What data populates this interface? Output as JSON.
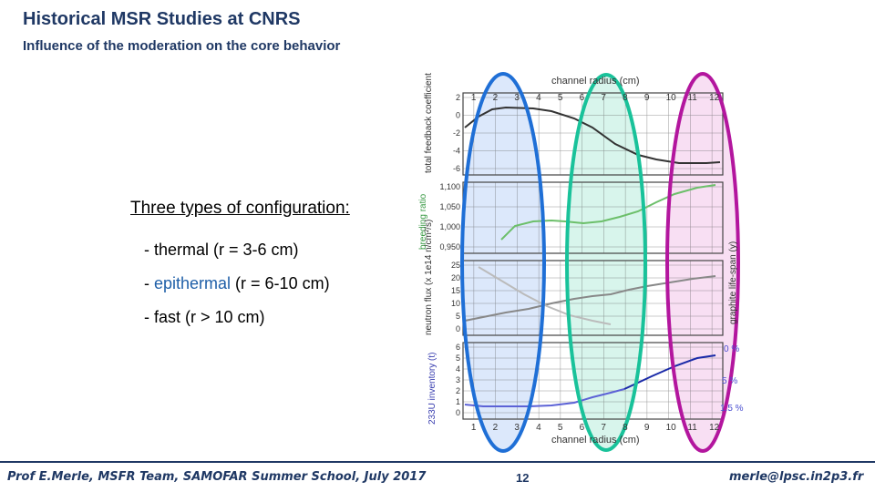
{
  "slide": {
    "title": "Historical MSR Studies at CNRS",
    "subtitle": "Influence of the moderation on the core behavior"
  },
  "content": {
    "heading": "Three types of configuration:",
    "items": [
      {
        "prefix": "- ",
        "label": "thermal",
        "range": " (r = 3-6 cm)"
      },
      {
        "prefix": "- ",
        "label": "epithermal",
        "range": " (r = 6-10 cm)"
      },
      {
        "prefix": "- ",
        "label": "fast",
        "range": " (r > 10 cm)"
      }
    ]
  },
  "figure": {
    "x_label": "channel radius (cm)",
    "x_ticks": [
      "1",
      "2",
      "3",
      "4",
      "5",
      "6",
      "7",
      "8",
      "9",
      "10",
      "11",
      "12"
    ],
    "panels": [
      {
        "ylabel": "total feedback coefficient (pcm/°C)",
        "ticks": [
          "2",
          "0",
          "-2",
          "-4",
          "-6"
        ]
      },
      {
        "ylabel": "breeding ratio",
        "ticks": [
          "1,100",
          "1,050",
          "1,000",
          "0,950"
        ]
      },
      {
        "ylabel": "neutron flux (x 1e14 n/cm²/s)",
        "ticks": [
          "25",
          "20",
          "15",
          "10",
          "5",
          "0"
        ]
      },
      {
        "ylabel": "233U inventory (t)",
        "ticks": [
          "6",
          "5",
          "4",
          "3",
          "2",
          "1",
          "0"
        ]
      }
    ],
    "right_label": "graphite life-span (y)",
    "percent_labels": [
      "0 %",
      "5 %",
      "1.5 %"
    ],
    "highlights": [
      {
        "name": "thermal",
        "color": "#1f6fd6",
        "fill": "#dce8fb"
      },
      {
        "name": "epithermal",
        "color": "#19c29a",
        "fill": "#d8f5ec"
      },
      {
        "name": "fast",
        "color": "#b3169e",
        "fill": "#f8dff3"
      }
    ]
  },
  "footer": {
    "author": "Prof E.Merle, MSFR Team, SAMOFAR Summer School, July 2017",
    "page": "12",
    "email": "merle@lpsc.in2p3.fr"
  }
}
